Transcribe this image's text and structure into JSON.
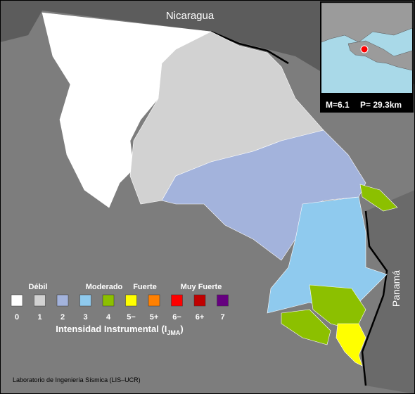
{
  "map": {
    "labels": {
      "north": "Nicaragua",
      "east": "Panamá"
    },
    "inset": {
      "magnitude": "M=6.1",
      "depth": "P= 29.3km"
    },
    "legend": {
      "groups": [
        "Débil",
        "Moderado",
        "Fuerte",
        "Muy Fuerte"
      ],
      "levels": [
        {
          "label": "0",
          "color": "#ffffff"
        },
        {
          "label": "1",
          "color": "#d2d2d2"
        },
        {
          "label": "2",
          "color": "#a3b3dc"
        },
        {
          "label": "3",
          "color": "#8fcaee"
        },
        {
          "label": "4",
          "color": "#8cc000"
        },
        {
          "label": "5−",
          "color": "#ffff00"
        },
        {
          "label": "5+",
          "color": "#ff8000"
        },
        {
          "label": "6−",
          "color": "#ff0000"
        },
        {
          "label": "6+",
          "color": "#c00000"
        },
        {
          "label": "7",
          "color": "#660080"
        }
      ],
      "title": "Intensidad Instrumental (I",
      "title_subscript": "JMA",
      "title_end": ")"
    },
    "credit": "Laboratorio de Ingeniería Sísmica (LIS–UCR)"
  }
}
